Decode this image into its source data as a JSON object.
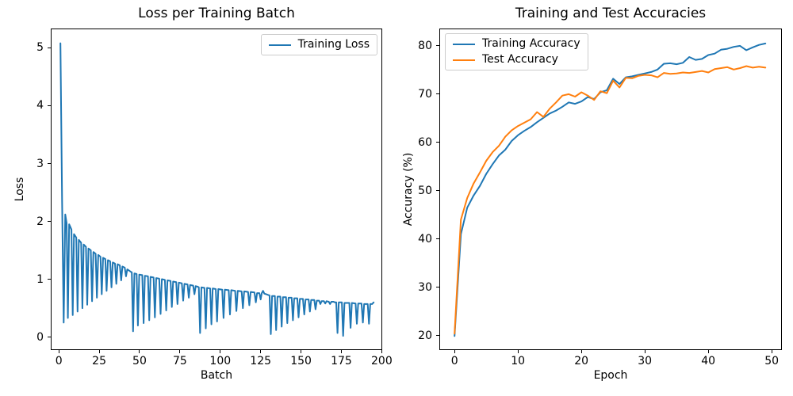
{
  "figure": {
    "background": "#ffffff",
    "spine_color": "#000000",
    "legend_border_color": "#cccccc"
  },
  "chart_data": [
    {
      "type": "line",
      "title": "Loss per Training Batch",
      "xlabel": "Batch",
      "ylabel": "Loss",
      "xlim": [
        -5.0,
        200.3
      ],
      "ylim": [
        -0.225,
        5.335
      ],
      "xticks": [
        0,
        25,
        50,
        75,
        100,
        125,
        150,
        175,
        200
      ],
      "yticks": [
        0,
        1,
        2,
        3,
        4,
        5
      ],
      "grid": false,
      "legend_position": "upper right",
      "series": [
        {
          "name": "Training Loss",
          "color": "#1f77b4",
          "points": [
            [
              1,
              5.08
            ],
            [
              2,
              2.35
            ],
            [
              3,
              0.25
            ],
            [
              4,
              2.12
            ],
            [
              4.8,
              1.97
            ],
            [
              5.6,
              0.33
            ],
            [
              6.4,
              1.95
            ],
            [
              7.8,
              1.86
            ],
            [
              8.6,
              0.38
            ],
            [
              9.4,
              1.78
            ],
            [
              10.8,
              1.72
            ],
            [
              11.6,
              0.44
            ],
            [
              12.4,
              1.68
            ],
            [
              13.8,
              1.63
            ],
            [
              14.6,
              0.5
            ],
            [
              15.4,
              1.6
            ],
            [
              16.8,
              1.56
            ],
            [
              17.6,
              0.56
            ],
            [
              18.4,
              1.53
            ],
            [
              19.8,
              1.5
            ],
            [
              20.6,
              0.62
            ],
            [
              21.4,
              1.47
            ],
            [
              22.8,
              1.44
            ],
            [
              23.6,
              0.68
            ],
            [
              24.4,
              1.42
            ],
            [
              25.8,
              1.39
            ],
            [
              26.6,
              0.74
            ],
            [
              27.4,
              1.37
            ],
            [
              28.8,
              1.35
            ],
            [
              29.6,
              0.8
            ],
            [
              30.4,
              1.33
            ],
            [
              31.8,
              1.31
            ],
            [
              32.6,
              0.86
            ],
            [
              33.4,
              1.29
            ],
            [
              34.8,
              1.27
            ],
            [
              35.6,
              0.92
            ],
            [
              36.4,
              1.26
            ],
            [
              37.8,
              1.24
            ],
            [
              38.6,
              0.98
            ],
            [
              39.4,
              1.22
            ],
            [
              40.8,
              1.2
            ],
            [
              41.6,
              1.05
            ],
            [
              42.4,
              1.17
            ],
            [
              43.5,
              1.15
            ],
            [
              44.5,
              1.13
            ],
            [
              45.2,
              1.12
            ],
            [
              46,
              0.1
            ],
            [
              46.8,
              1.1
            ],
            [
              48.2,
              1.09
            ],
            [
              49,
              0.2
            ],
            [
              49.8,
              1.08
            ],
            [
              51.7,
              1.07
            ],
            [
              52.5,
              0.24
            ],
            [
              53.3,
              1.06
            ],
            [
              55.2,
              1.05
            ],
            [
              56,
              0.29
            ],
            [
              56.8,
              1.04
            ],
            [
              58.7,
              1.03
            ],
            [
              59.5,
              0.34
            ],
            [
              60.3,
              1.02
            ],
            [
              62.2,
              1.01
            ],
            [
              63,
              0.4
            ],
            [
              63.8,
              1.0
            ],
            [
              65.7,
              0.99
            ],
            [
              66.5,
              0.46
            ],
            [
              67.3,
              0.98
            ],
            [
              69.2,
              0.97
            ],
            [
              70,
              0.52
            ],
            [
              70.8,
              0.96
            ],
            [
              72.7,
              0.95
            ],
            [
              73.5,
              0.57
            ],
            [
              74.3,
              0.94
            ],
            [
              76.2,
              0.93
            ],
            [
              77,
              0.63
            ],
            [
              77.8,
              0.92
            ],
            [
              79.7,
              0.91
            ],
            [
              80.5,
              0.68
            ],
            [
              81.3,
              0.9
            ],
            [
              83.2,
              0.89
            ],
            [
              84,
              0.74
            ],
            [
              84.8,
              0.88
            ],
            [
              86,
              0.87
            ],
            [
              86.7,
              0.86
            ],
            [
              87.5,
              0.07
            ],
            [
              88.3,
              0.86
            ],
            [
              90.2,
              0.85
            ],
            [
              91,
              0.15
            ],
            [
              91.8,
              0.85
            ],
            [
              93.7,
              0.84
            ],
            [
              94.5,
              0.22
            ],
            [
              95.3,
              0.84
            ],
            [
              97.2,
              0.83
            ],
            [
              98,
              0.27
            ],
            [
              98.8,
              0.83
            ],
            [
              101.2,
              0.82
            ],
            [
              102,
              0.33
            ],
            [
              102.8,
              0.82
            ],
            [
              105.2,
              0.81
            ],
            [
              106,
              0.39
            ],
            [
              106.8,
              0.81
            ],
            [
              109.2,
              0.8
            ],
            [
              110,
              0.45
            ],
            [
              110.8,
              0.8
            ],
            [
              113.2,
              0.79
            ],
            [
              114,
              0.5
            ],
            [
              114.8,
              0.79
            ],
            [
              117.2,
              0.78
            ],
            [
              118,
              0.55
            ],
            [
              118.8,
              0.78
            ],
            [
              121.2,
              0.77
            ],
            [
              122,
              0.6
            ],
            [
              122.8,
              0.76
            ],
            [
              124.2,
              0.76
            ],
            [
              125,
              0.65
            ],
            [
              125.7,
              0.76
            ],
            [
              126.5,
              0.8
            ],
            [
              127.3,
              0.75
            ],
            [
              128.5,
              0.74
            ],
            [
              129.5,
              0.73
            ],
            [
              130.5,
              0.72
            ],
            [
              131.3,
              0.05
            ],
            [
              132.1,
              0.71
            ],
            [
              133.8,
              0.71
            ],
            [
              134.6,
              0.12
            ],
            [
              135.4,
              0.7
            ],
            [
              137.2,
              0.7
            ],
            [
              138,
              0.18
            ],
            [
              138.8,
              0.69
            ],
            [
              140.7,
              0.69
            ],
            [
              141.5,
              0.24
            ],
            [
              142.3,
              0.68
            ],
            [
              144.2,
              0.68
            ],
            [
              145,
              0.29
            ],
            [
              145.8,
              0.67
            ],
            [
              147.7,
              0.67
            ],
            [
              148.5,
              0.34
            ],
            [
              149.3,
              0.66
            ],
            [
              151.2,
              0.66
            ],
            [
              152,
              0.39
            ],
            [
              152.8,
              0.65
            ],
            [
              154.7,
              0.65
            ],
            [
              155.5,
              0.44
            ],
            [
              156.3,
              0.64
            ],
            [
              158.2,
              0.64
            ],
            [
              159,
              0.48
            ],
            [
              159.8,
              0.63
            ],
            [
              161.2,
              0.63
            ],
            [
              162,
              0.57
            ],
            [
              162.8,
              0.62
            ],
            [
              164.2,
              0.62
            ],
            [
              165,
              0.58
            ],
            [
              165.8,
              0.62
            ],
            [
              167.2,
              0.61
            ],
            [
              168,
              0.57
            ],
            [
              168.8,
              0.61
            ],
            [
              170.2,
              0.61
            ],
            [
              171,
              0.6
            ],
            [
              171.8,
              0.6
            ],
            [
              172.6,
              0.07
            ],
            [
              173.4,
              0.6
            ],
            [
              175.3,
              0.6
            ],
            [
              176.1,
              0.02
            ],
            [
              176.9,
              0.59
            ],
            [
              179.9,
              0.59
            ],
            [
              180.7,
              0.16
            ],
            [
              181.5,
              0.59
            ],
            [
              183.8,
              0.58
            ],
            [
              184.6,
              0.23
            ],
            [
              185.4,
              0.58
            ],
            [
              187.5,
              0.58
            ],
            [
              188.3,
              0.25
            ],
            [
              189.1,
              0.57
            ],
            [
              191.3,
              0.57
            ],
            [
              192.1,
              0.23
            ],
            [
              192.9,
              0.57
            ],
            [
              194,
              0.57
            ],
            [
              195,
              0.6
            ]
          ]
        }
      ]
    },
    {
      "type": "line",
      "title": "Training and Test Accuracies",
      "xlabel": "Epoch",
      "ylabel": "Accuracy (%)",
      "xlim": [
        -2.4,
        51.6
      ],
      "ylim": [
        17.0,
        83.6
      ],
      "xticks": [
        0,
        10,
        20,
        30,
        40,
        50
      ],
      "yticks": [
        20,
        30,
        40,
        50,
        60,
        70,
        80
      ],
      "grid": false,
      "legend_position": "upper left",
      "series": [
        {
          "name": "Training Accuracy",
          "color": "#1f77b4",
          "x": [
            0,
            1,
            2,
            3,
            4,
            5,
            6,
            7,
            8,
            9,
            10,
            11,
            12,
            13,
            14,
            15,
            16,
            17,
            18,
            19,
            20,
            21,
            22,
            23,
            24,
            25,
            26,
            27,
            28,
            29,
            30,
            31,
            32,
            33,
            34,
            35,
            36,
            37,
            38,
            39,
            40,
            41,
            42,
            43,
            44,
            45,
            46,
            47,
            48,
            49
          ],
          "y": [
            19.9,
            41.0,
            46.5,
            49.0,
            51.0,
            53.5,
            55.5,
            57.3,
            58.5,
            60.3,
            61.5,
            62.4,
            63.2,
            64.2,
            65.1,
            66.0,
            66.6,
            67.4,
            68.3,
            68.0,
            68.5,
            69.4,
            69.0,
            70.4,
            70.8,
            73.2,
            72.1,
            73.5,
            73.7,
            74.0,
            74.3,
            74.6,
            75.1,
            76.3,
            76.4,
            76.2,
            76.5,
            77.7,
            77.1,
            77.3,
            78.1,
            78.4,
            79.2,
            79.4,
            79.8,
            80.0,
            79.1,
            79.7,
            80.2,
            80.5
          ]
        },
        {
          "name": "Test Accuracy",
          "color": "#ff7f0e",
          "x": [
            0,
            1,
            2,
            3,
            4,
            5,
            6,
            7,
            8,
            9,
            10,
            11,
            12,
            13,
            14,
            15,
            16,
            17,
            18,
            19,
            20,
            21,
            22,
            23,
            24,
            25,
            26,
            27,
            28,
            29,
            30,
            31,
            32,
            33,
            34,
            35,
            36,
            37,
            38,
            39,
            40,
            41,
            42,
            43,
            44,
            45,
            46,
            47,
            48,
            49
          ],
          "y": [
            20.4,
            44.0,
            48.5,
            51.5,
            53.8,
            56.2,
            58.0,
            59.3,
            61.2,
            62.5,
            63.4,
            64.1,
            64.8,
            66.3,
            65.3,
            67.0,
            68.3,
            69.7,
            70.0,
            69.5,
            70.4,
            69.7,
            68.8,
            70.6,
            70.2,
            72.8,
            71.4,
            73.4,
            73.3,
            73.8,
            74.0,
            73.9,
            73.5,
            74.4,
            74.2,
            74.3,
            74.5,
            74.4,
            74.6,
            74.8,
            74.5,
            75.2,
            75.4,
            75.6,
            75.1,
            75.4,
            75.8,
            75.5,
            75.7,
            75.5
          ]
        }
      ]
    }
  ]
}
